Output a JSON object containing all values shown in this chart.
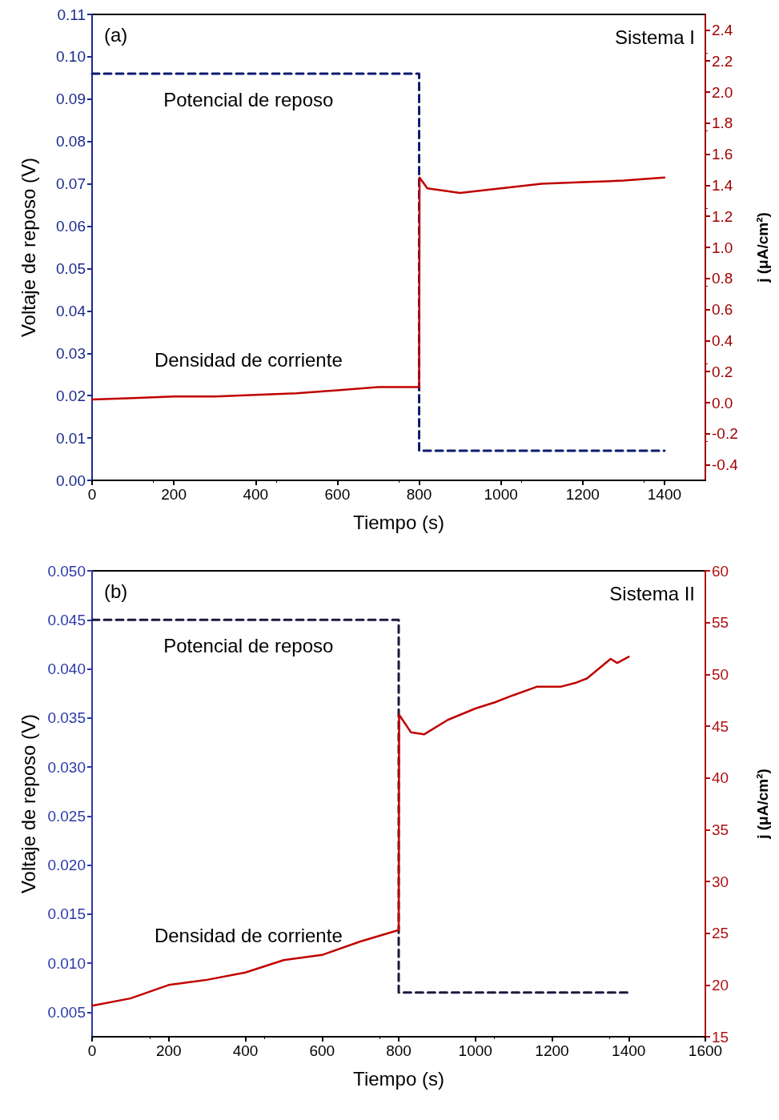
{
  "chart_data": [
    {
      "type": "line",
      "title": "(a)",
      "annotations": [
        "Sistema I"
      ],
      "xlabel": "Tiempo (s)",
      "ylabel": "Voltaje de reposo (V)",
      "y2label": "j (μA/cm²)",
      "legend": false,
      "grid": false,
      "marker": "none",
      "xlim": [
        0,
        1500
      ],
      "xticks": [
        0,
        200,
        400,
        600,
        800,
        1000,
        1200,
        1400
      ],
      "ylim": [
        0,
        0.11
      ],
      "yticks": [
        {
          "value": 0,
          "label": "0.00"
        },
        0.01,
        0.02,
        0.03,
        0.04,
        0.05,
        0.06,
        0.07,
        0.08,
        0.09,
        {
          "value": 0.1,
          "label": "0.10"
        },
        0.11
      ],
      "y2lim": [
        -0.5,
        2.5
      ],
      "y2ticks": [
        -0.4,
        -0.2,
        {
          "value": 0,
          "label": "0.0"
        },
        0.2,
        0.4,
        0.6,
        0.8,
        {
          "value": 1,
          "label": "1.0"
        },
        1.2,
        1.4,
        1.6,
        1.8,
        {
          "value": 2,
          "label": "2.0"
        },
        2.2,
        2.4
      ],
      "series": [
        {
          "name": "Potencial de reposo",
          "color": "#0d1b6e",
          "line_style": "dashed",
          "x": [
            0,
            800,
            800,
            1400
          ],
          "values": [
            0.096,
            0.096,
            0.007,
            0.007
          ]
        },
        {
          "name": "Densidad de corriente",
          "color": "#c00000",
          "line_style": "solid",
          "axis": "y2",
          "x": [
            0,
            100,
            200,
            300,
            400,
            500,
            600,
            700,
            790,
            800,
            801,
            820,
            900,
            1000,
            1100,
            1200,
            1300,
            1400
          ],
          "values": [
            0.02,
            0.03,
            0.04,
            0.04,
            0.05,
            0.06,
            0.08,
            0.1,
            0.1,
            0.1,
            1.45,
            1.38,
            1.35,
            1.38,
            1.41,
            1.42,
            1.43,
            1.45
          ]
        }
      ]
    },
    {
      "type": "line",
      "title": "(b)",
      "annotations": [
        "Sistema II"
      ],
      "xlabel": "Tiempo (s)",
      "ylabel": "Voltaje de reposo (V)",
      "y2label": "j (μA/cm²)",
      "legend": false,
      "grid": false,
      "marker": "none",
      "xlim": [
        0,
        1600
      ],
      "xticks": [
        0,
        200,
        400,
        600,
        800,
        1000,
        1200,
        1400,
        1600
      ],
      "ylim": [
        0.0025,
        0.05
      ],
      "yticks": [
        0.005,
        {
          "value": 0.01,
          "label": "0.010"
        },
        0.015,
        {
          "value": 0.02,
          "label": "0.020"
        },
        0.025,
        {
          "value": 0.03,
          "label": "0.030"
        },
        0.035,
        {
          "value": 0.04,
          "label": "0.040"
        },
        0.045,
        {
          "value": 0.05,
          "label": "0.050"
        }
      ],
      "y2lim": [
        15,
        60
      ],
      "y2ticks": [
        15,
        20,
        25,
        30,
        35,
        40,
        45,
        50,
        55,
        60
      ],
      "series": [
        {
          "name": "Potencial de reposo",
          "color": "#1a1a40",
          "line_style": "dashed",
          "x": [
            0,
            800,
            800,
            1400
          ],
          "values": [
            0.045,
            0.045,
            0.007,
            0.007
          ]
        },
        {
          "name": "Densidad de corriente",
          "color": "#c00000",
          "line_style": "solid",
          "axis": "y2",
          "x": [
            0,
            100,
            200,
            300,
            400,
            500,
            600,
            700,
            800,
            801,
            832,
            866,
            928,
            1000,
            1051,
            1100,
            1160,
            1222,
            1263,
            1291,
            1353,
            1370,
            1400
          ],
          "values": [
            18.0,
            18.7,
            20.0,
            20.5,
            21.2,
            22.4,
            22.9,
            24.2,
            25.3,
            46.1,
            44.4,
            44.2,
            45.6,
            46.7,
            47.3,
            48.0,
            48.8,
            48.8,
            49.2,
            49.6,
            51.5,
            51.1,
            51.7
          ]
        }
      ]
    }
  ]
}
